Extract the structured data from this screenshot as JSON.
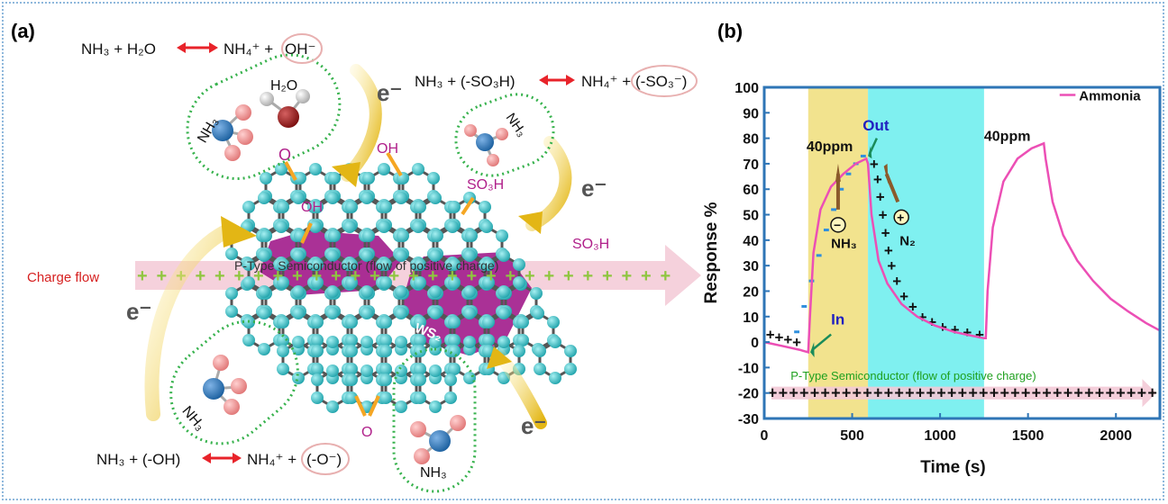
{
  "panel_a": {
    "label": "(a)",
    "eq1": {
      "left": "NH₃ + H₂O",
      "right": "NH₄⁺ + ",
      "circled": "OH⁻"
    },
    "eq2": {
      "left": "NH₃ + (-SO₃H)",
      "right": "NH₄⁺ + ",
      "circled": "(-SO₃⁻)"
    },
    "eq3": {
      "left": "NH₃ + (-OH)",
      "right": "NH₄⁺ + ",
      "circled": "(-O⁻)"
    },
    "electron": "e⁻",
    "molecules": {
      "nh3": "NH₃",
      "h2o": "H₂O"
    },
    "groups": {
      "o": "O",
      "oh": "OH",
      "so3h": "SO₃H",
      "ws2": "WS₂"
    },
    "charge_flow": "Charge flow",
    "semiconductor": "P-Type Semiconductor (flow of positive charge)",
    "colors": {
      "arrow_red": "#e8232a",
      "accent_purple": "#b0208a",
      "green_dots": "#37b24d",
      "carbon": "#3fbfc6",
      "ws2": "#a3208d",
      "band": "#f3c9d6",
      "charge": "#8fc63f"
    }
  },
  "panel_b": {
    "label": "(b)",
    "legend": "Ammonia",
    "annotations": {
      "conc1": "40ppm",
      "conc2": "40ppm",
      "out": "Out",
      "in": "In",
      "nh3": "NH₃",
      "n2": "N₂",
      "minus": "−",
      "plus": "+"
    },
    "semiconductor": "P-Type Semiconductor (flow of positive charge)",
    "colors": {
      "line": "#ec4fb5",
      "adsorption": "#f2e38e",
      "desorption": "#7ff0f0",
      "axis": "#2e75b6",
      "green_text": "#1fa01f"
    }
  },
  "chart_data": {
    "type": "line",
    "xlabel": "Time (s)",
    "ylabel": "Response %",
    "xlim": [
      0,
      2250
    ],
    "ylim": [
      -30,
      100
    ],
    "xticks": [
      0,
      500,
      1000,
      1500,
      2000
    ],
    "yticks": [
      -30,
      -20,
      -10,
      0,
      10,
      20,
      30,
      40,
      50,
      60,
      70,
      80,
      90,
      100
    ],
    "shaded_regions": [
      {
        "x": [
          250,
          590
        ],
        "color": "#f2e38e"
      },
      {
        "x": [
          590,
          1250
        ],
        "color": "#7ff0f0"
      }
    ],
    "series": [
      {
        "name": "Ammonia",
        "x": [
          0,
          100,
          200,
          250,
          260,
          280,
          320,
          380,
          450,
          520,
          580,
          590,
          610,
          650,
          700,
          780,
          870,
          970,
          1080,
          1180,
          1250,
          1260,
          1270,
          1300,
          1360,
          1440,
          1520,
          1590,
          1600,
          1640,
          1700,
          1780,
          1870,
          1970,
          2070,
          2170,
          2250
        ],
        "y": [
          0,
          -1.5,
          -3,
          -4,
          10,
          35,
          52,
          61,
          66,
          70,
          72,
          70,
          50,
          32,
          23,
          15,
          10,
          6.5,
          4,
          2.5,
          1.5,
          1.5,
          20,
          45,
          63,
          72,
          76,
          78,
          72,
          55,
          42,
          32,
          24,
          17,
          12,
          7.5,
          4.5
        ]
      }
    ],
    "legend": "top-right",
    "grid": false
  }
}
